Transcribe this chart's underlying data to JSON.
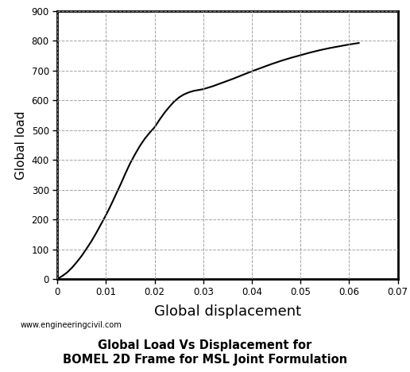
{
  "title_line1": "Global Load Vs Displacement for",
  "title_line2": "BOMEL 2D Frame for MSL Joint Formulation",
  "xlabel": "Global displacement",
  "ylabel": "Global load",
  "watermark": "www.engineeringcivil.com",
  "xlim": [
    0,
    0.07
  ],
  "ylim": [
    0,
    900
  ],
  "xticks": [
    0,
    0.01,
    0.02,
    0.03,
    0.04,
    0.05,
    0.06,
    0.07
  ],
  "yticks": [
    0,
    100,
    200,
    300,
    400,
    500,
    600,
    700,
    800,
    900
  ],
  "line_color": "#000000",
  "line_width": 1.5,
  "grid_color": "#999999",
  "grid_style": "--",
  "background_color": "#ffffff",
  "curve_x": [
    0.0,
    0.001,
    0.002,
    0.003,
    0.004,
    0.005,
    0.006,
    0.007,
    0.008,
    0.009,
    0.01,
    0.011,
    0.012,
    0.013,
    0.014,
    0.015,
    0.016,
    0.017,
    0.018,
    0.019,
    0.02,
    0.021,
    0.022,
    0.023,
    0.024,
    0.025,
    0.026,
    0.027,
    0.028,
    0.029,
    0.03,
    0.032,
    0.034,
    0.036,
    0.038,
    0.04,
    0.042,
    0.044,
    0.046,
    0.048,
    0.05,
    0.052,
    0.054,
    0.056,
    0.058,
    0.06,
    0.062
  ],
  "curve_y": [
    0,
    10,
    22,
    38,
    57,
    78,
    102,
    127,
    155,
    185,
    215,
    248,
    283,
    318,
    355,
    390,
    420,
    448,
    472,
    492,
    510,
    535,
    558,
    578,
    596,
    610,
    620,
    627,
    632,
    635,
    638,
    648,
    660,
    672,
    685,
    698,
    710,
    722,
    733,
    743,
    752,
    761,
    769,
    776,
    782,
    788,
    793
  ]
}
